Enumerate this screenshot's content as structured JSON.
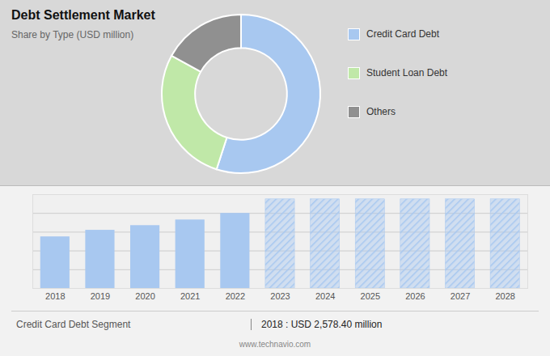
{
  "chart_data": [
    {
      "type": "pie",
      "title": "Debt Settlement Market",
      "subtitle": "Share by Type (USD million)",
      "categories": [
        "Credit Card Debt",
        "Student Loan Debt",
        "Others"
      ],
      "values": [
        0.55,
        0.28,
        0.17
      ],
      "colors": [
        "#a8c8f0",
        "#c0e8a8",
        "#909090"
      ],
      "legend": "right"
    },
    {
      "type": "bar",
      "x": [
        2018,
        2019,
        2020,
        2021,
        2022,
        2023,
        2024,
        2025,
        2026,
        2027,
        2028
      ],
      "series": [
        {
          "color": "#a8c8f0",
          "values": [
            55,
            62,
            67,
            73,
            80,
            null,
            null,
            null,
            null,
            null,
            null
          ]
        },
        {
          "color": "#a8c8f0",
          "values": [
            null,
            null,
            null,
            null,
            null,
            95,
            95,
            95,
            95,
            95,
            95
          ]
        }
      ],
      "xlim": [
        2017.5,
        2028.5
      ],
      "xticks": [
        2018,
        2019,
        2020,
        2021,
        2022,
        2023,
        2024,
        2025,
        2026,
        2027,
        2028
      ],
      "ylim": [
        0,
        100
      ],
      "yticks": [
        0,
        20,
        40,
        60,
        80,
        100
      ],
      "grid": true,
      "tick_labels": "x",
      "annotations": [
        "Credit Card Debt Segment",
        "2018 : USD 2,578.40 million",
        "www.technavio.com"
      ]
    }
  ]
}
